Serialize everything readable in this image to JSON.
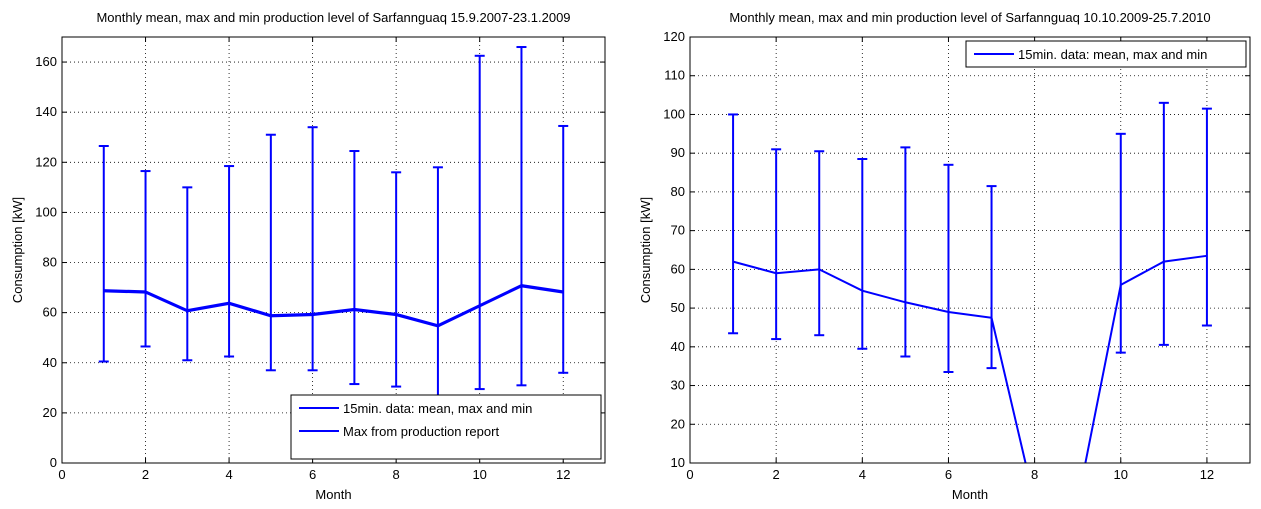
{
  "chart_data": [
    {
      "type": "line",
      "title": "Monthly mean, max and min production level of Sarfannguaq 15.9.2007-23.1.2009",
      "xlabel": "Month",
      "ylabel": "Consumption [kW]",
      "xlim": [
        0,
        13
      ],
      "ylim": [
        0,
        170
      ],
      "xticks": [
        0,
        2,
        4,
        6,
        8,
        10,
        12
      ],
      "yticks": [
        0,
        20,
        40,
        60,
        80,
        100,
        120,
        140,
        160
      ],
      "grid": true,
      "legend_position": "bottom-right",
      "series": [
        {
          "name": "15min. data: mean, max and min",
          "color": "#0000ff",
          "x": [
            1,
            2,
            3,
            4,
            5,
            6,
            7,
            8,
            9,
            10,
            11,
            12
          ],
          "mean": [
            69,
            68.5,
            61,
            64,
            59,
            59.5,
            61.5,
            59.5,
            55,
            63,
            71,
            68.5
          ],
          "max": [
            126.5,
            116.5,
            110,
            118.5,
            131,
            134,
            124.5,
            116,
            118,
            162.5,
            166,
            134.5
          ],
          "min": [
            40.5,
            46.5,
            41,
            42.5,
            37,
            37,
            31.5,
            30.5,
            24,
            29.5,
            31,
            36
          ]
        },
        {
          "name": "Max from production report",
          "color": "#0000ff",
          "x": [
            1,
            2,
            3,
            4,
            5,
            6,
            7,
            8,
            9,
            10,
            11,
            12
          ],
          "y": [
            68.5,
            68,
            60.5,
            63.5,
            58.5,
            59,
            61,
            59,
            54.5,
            62.5,
            70.5,
            68
          ]
        }
      ]
    },
    {
      "type": "line",
      "title": "Monthly mean, max and min production level of Sarfannguaq 10.10.2009-25.7.2010",
      "xlabel": "Month",
      "ylabel": "Consumption [kW]",
      "xlim": [
        0,
        13
      ],
      "ylim": [
        10,
        120
      ],
      "xticks": [
        0,
        2,
        4,
        6,
        8,
        10,
        12
      ],
      "yticks": [
        10,
        20,
        30,
        40,
        50,
        60,
        70,
        80,
        90,
        100,
        110,
        120
      ],
      "grid": true,
      "legend_position": "top-right",
      "series": [
        {
          "name": "15min. data: mean, max and min",
          "color": "#0000ff",
          "x": [
            1,
            2,
            3,
            4,
            5,
            6,
            7,
            8,
            9,
            10,
            11,
            12
          ],
          "mean": [
            62,
            59,
            60,
            54.5,
            51.5,
            49,
            47.5,
            0,
            0,
            56,
            62,
            63.5
          ],
          "max": [
            100,
            91,
            90.5,
            88.5,
            91.5,
            87,
            81.5,
            null,
            null,
            95,
            103,
            101.5
          ],
          "min": [
            43.5,
            42,
            43,
            39.5,
            37.5,
            33.5,
            34.5,
            null,
            null,
            38.5,
            40.5,
            45.5
          ]
        }
      ]
    }
  ]
}
